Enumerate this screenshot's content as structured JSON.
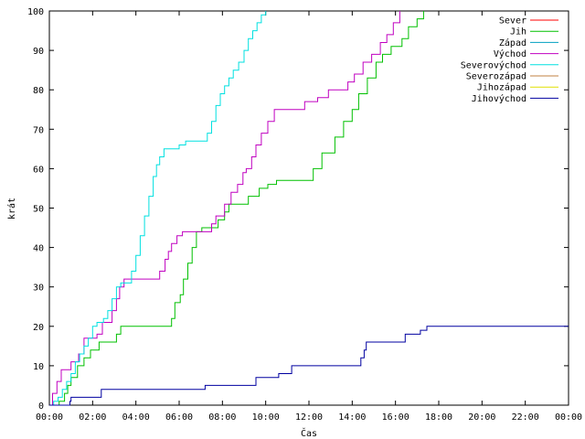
{
  "chart_data": {
    "type": "line",
    "title": "",
    "xlabel": "Čas",
    "ylabel": "krát",
    "xlim": [
      0,
      24
    ],
    "ylim": [
      0,
      100
    ],
    "x_ticks": [
      {
        "value": 0,
        "label": "00:00"
      },
      {
        "value": 2,
        "label": "02:00"
      },
      {
        "value": 4,
        "label": "04:00"
      },
      {
        "value": 6,
        "label": "06:00"
      },
      {
        "value": 8,
        "label": "08:00"
      },
      {
        "value": 10,
        "label": "10:00"
      },
      {
        "value": 12,
        "label": "12:00"
      },
      {
        "value": 14,
        "label": "14:00"
      },
      {
        "value": 16,
        "label": "16:00"
      },
      {
        "value": 18,
        "label": "18:00"
      },
      {
        "value": 20,
        "label": "20:00"
      },
      {
        "value": 22,
        "label": "22:00"
      },
      {
        "value": 24,
        "label": "00:00"
      }
    ],
    "y_ticks": [
      0,
      10,
      20,
      30,
      40,
      50,
      60,
      70,
      80,
      90,
      100
    ],
    "grid": false,
    "legend_position": "top-right",
    "series": [
      {
        "name": "Sever",
        "color": "#ff0000",
        "x": [],
        "y": []
      },
      {
        "name": "Jih",
        "color": "#00c000",
        "x": [
          0.0,
          0.45,
          0.7,
          0.85,
          1.0,
          1.3,
          1.6,
          1.9,
          2.3,
          3.1,
          3.3,
          3.4,
          3.5,
          5.5,
          5.65,
          5.8,
          6.05,
          6.2,
          6.4,
          6.6,
          6.8,
          7.05,
          7.35,
          7.8,
          8.1,
          8.3,
          8.6,
          9.2,
          9.7,
          10.1,
          10.5,
          10.9,
          11.9,
          12.2,
          12.6,
          13.2,
          13.6,
          14.0,
          14.3,
          14.7,
          15.1,
          15.4,
          15.8,
          16.3,
          16.6,
          17.0,
          17.3
        ],
        "y": [
          0,
          1,
          3,
          5,
          7,
          10,
          12,
          14,
          16,
          18,
          20,
          20,
          20,
          20,
          22,
          26,
          28,
          32,
          36,
          40,
          44,
          45,
          45,
          47,
          49,
          51,
          51,
          53,
          55,
          56,
          57,
          57,
          57,
          60,
          64,
          68,
          72,
          75,
          79,
          83,
          87,
          89,
          91,
          93,
          96,
          98,
          100
        ]
      },
      {
        "name": "Západ",
        "color": "#00a0c0",
        "x": [],
        "y": []
      },
      {
        "name": "Východ",
        "color": "#c000c0",
        "x": [
          0.0,
          0.15,
          0.35,
          0.55,
          1.0,
          1.35,
          1.6,
          2.2,
          2.45,
          2.9,
          3.1,
          3.25,
          3.45,
          3.7,
          4.9,
          5.1,
          5.35,
          5.5,
          5.65,
          5.9,
          6.15,
          6.6,
          7.3,
          7.5,
          7.7,
          8.1,
          8.4,
          8.7,
          8.95,
          9.1,
          9.35,
          9.55,
          9.8,
          10.1,
          10.4,
          10.65,
          11.0,
          11.8,
          12.4,
          12.9,
          13.35,
          13.8,
          14.1,
          14.5,
          14.9,
          15.3,
          15.6,
          15.9,
          16.2
        ],
        "y": [
          0,
          3,
          6,
          9,
          11,
          13,
          17,
          18,
          21,
          24,
          27,
          30,
          32,
          32,
          32,
          34,
          37,
          39,
          41,
          43,
          44,
          44,
          44,
          46,
          48,
          51,
          54,
          56,
          59,
          60,
          63,
          66,
          69,
          72,
          75,
          75,
          75,
          77,
          78,
          80,
          80,
          82,
          84,
          87,
          89,
          92,
          94,
          97,
          100
        ]
      },
      {
        "name": "Severovýchod",
        "color": "#00e0e0",
        "x": [
          0.0,
          0.2,
          0.4,
          0.6,
          0.8,
          1.0,
          1.2,
          1.4,
          1.6,
          1.8,
          2.0,
          2.2,
          2.5,
          2.7,
          2.9,
          3.1,
          3.3,
          3.7,
          3.8,
          4.0,
          4.2,
          4.4,
          4.6,
          4.8,
          4.95,
          5.1,
          5.3,
          5.8,
          6.0,
          6.3,
          7.1,
          7.3,
          7.5,
          7.7,
          7.9,
          8.1,
          8.3,
          8.5,
          8.75,
          9.0,
          9.2,
          9.4,
          9.6,
          9.8,
          10.0
        ],
        "y": [
          0,
          1,
          2,
          4,
          6,
          8,
          11,
          13,
          15,
          17,
          20,
          21,
          22,
          24,
          27,
          30,
          31,
          31,
          34,
          38,
          43,
          48,
          53,
          58,
          61,
          63,
          65,
          65,
          66,
          67,
          67,
          69,
          72,
          76,
          79,
          81,
          83,
          85,
          87,
          90,
          93,
          95,
          97,
          99,
          100
        ]
      },
      {
        "name": "Severozápad",
        "color": "#c08040",
        "x": [],
        "y": []
      },
      {
        "name": "Jihozápad",
        "color": "#e0e000",
        "x": [],
        "y": []
      },
      {
        "name": "Jihovýchod",
        "color": "#0000a0",
        "x": [
          0.0,
          0.9,
          0.95,
          1.0,
          2.3,
          2.4,
          4.4,
          6.4,
          6.5,
          7.1,
          7.2,
          9.4,
          9.55,
          10.5,
          10.6,
          11.1,
          11.2,
          14.3,
          14.4,
          14.55,
          14.65,
          15.0,
          16.3,
          16.45,
          17.0,
          17.15,
          17.35,
          17.45,
          24.0
        ],
        "y": [
          0,
          0,
          1,
          2,
          2,
          4,
          4,
          4,
          4,
          4,
          5,
          5,
          7,
          7,
          8,
          8,
          10,
          10,
          12,
          14,
          16,
          16,
          16,
          18,
          18,
          19,
          19,
          20,
          20
        ]
      }
    ]
  }
}
